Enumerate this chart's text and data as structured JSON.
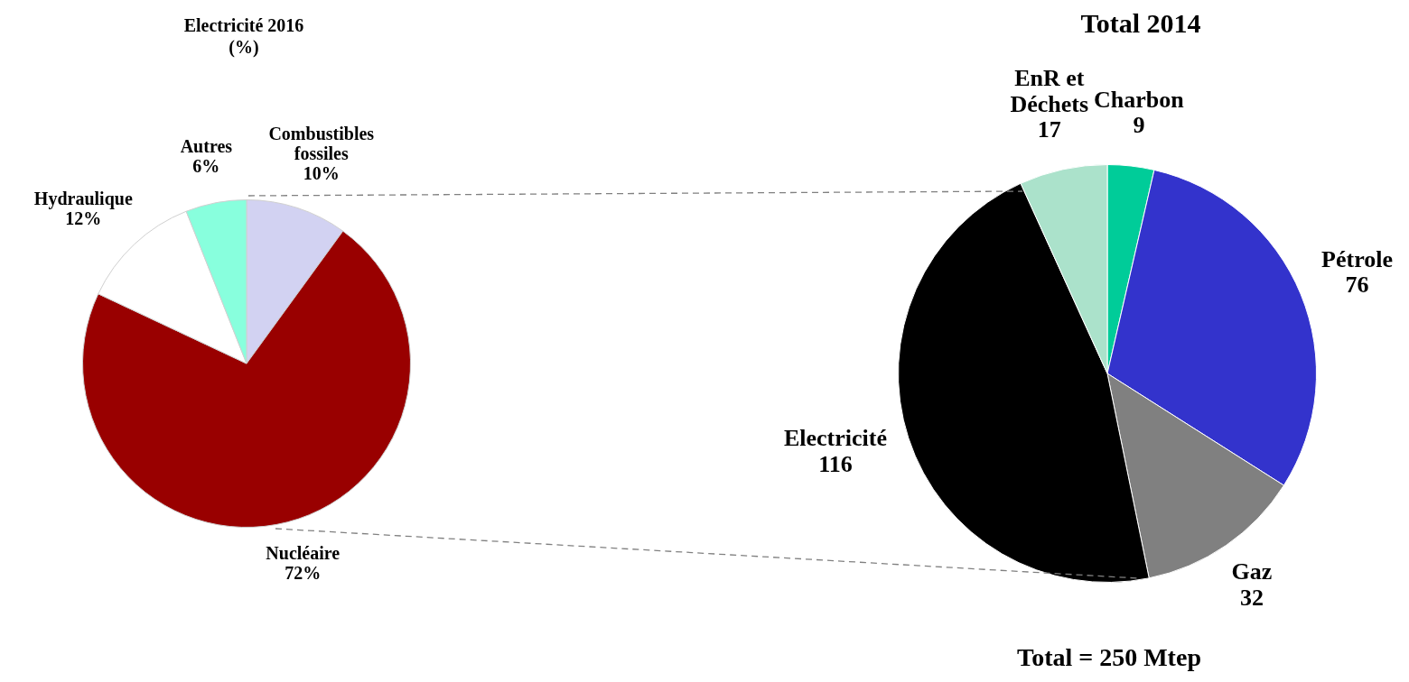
{
  "chart_data": [
    {
      "type": "pie",
      "title": "Electricité 2016 (%)",
      "categories": [
        "Combustibles fossiles",
        "Nucléaire",
        "Hydraulique",
        "Autres"
      ],
      "values": [
        10,
        72,
        12,
        6
      ],
      "colors": [
        "#d2d2f2",
        "#990000",
        "#ffffff",
        "#88ffdd"
      ],
      "value_labels": [
        "10%",
        "72%",
        "12%",
        "6%"
      ]
    },
    {
      "type": "pie",
      "title": "Total 2014",
      "categories": [
        "Charbon",
        "Pétrole",
        "Gaz",
        "Electricité",
        "EnR et Déchets"
      ],
      "values": [
        9,
        76,
        32,
        116,
        17
      ],
      "colors": [
        "#00cc99",
        "#3333cc",
        "#808080",
        "#000000",
        "#abe2cb"
      ],
      "data_labels": true,
      "annotations": [
        "Total = 250 Mtep"
      ]
    }
  ]
}
